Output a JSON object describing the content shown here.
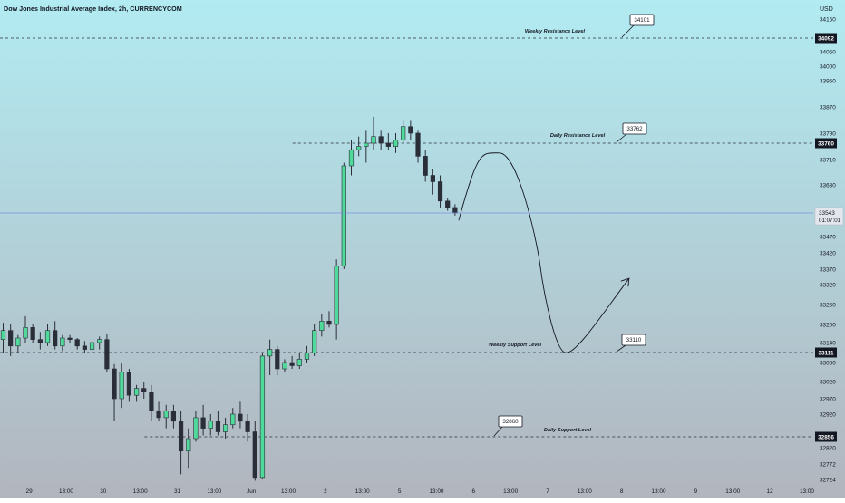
{
  "header": {
    "title": "Dow Jones Industrial Average Index, 2h, CURRENCYCOM"
  },
  "colors": {
    "bg_top": "#b2ebf2",
    "bg_bottom": "#b2b5be",
    "bull": "#4fd99a",
    "bear": "#2a2e39",
    "text": "#131722",
    "tag_dark": "#131722",
    "price_line": "#7e8fe0"
  },
  "chart_data": {
    "type": "candlestick",
    "currency": "USD",
    "ylim": [
      32700,
      34200
    ],
    "y_ticks": [
      {
        "label": "34150",
        "value": 34150
      },
      {
        "label": "34050",
        "value": 34050
      },
      {
        "label": "34000",
        "value": 34000
      },
      {
        "label": "33950",
        "value": 33950
      },
      {
        "label": "33870",
        "value": 33870
      },
      {
        "label": "33790",
        "value": 33790
      },
      {
        "label": "33710",
        "value": 33710
      },
      {
        "label": "33630",
        "value": 33630
      },
      {
        "label": "33470",
        "value": 33470
      },
      {
        "label": "33420",
        "value": 33420
      },
      {
        "label": "33370",
        "value": 33370
      },
      {
        "label": "33320",
        "value": 33320
      },
      {
        "label": "33260",
        "value": 33260
      },
      {
        "label": "33200",
        "value": 33200
      },
      {
        "label": "33140",
        "value": 33140
      },
      {
        "label": "33080",
        "value": 33080
      },
      {
        "label": "33020",
        "value": 33020
      },
      {
        "label": "32970",
        "value": 32970
      },
      {
        "label": "32920",
        "value": 32920
      },
      {
        "label": "32820",
        "value": 32820
      },
      {
        "label": "32772",
        "value": 32772
      },
      {
        "label": "32724",
        "value": 32724
      }
    ],
    "x_ticks": [
      {
        "label": "29",
        "bar": 3.5
      },
      {
        "label": "13:00",
        "bar": 8.5
      },
      {
        "label": "30",
        "bar": 13.5
      },
      {
        "label": "13:00",
        "bar": 18.5
      },
      {
        "label": "31",
        "bar": 23.5
      },
      {
        "label": "13:00",
        "bar": 28.5
      },
      {
        "label": "Jun",
        "bar": 33.5
      },
      {
        "label": "13:00",
        "bar": 38.5
      },
      {
        "label": "2",
        "bar": 43.5
      },
      {
        "label": "13:00",
        "bar": 48.5
      },
      {
        "label": "5",
        "bar": 53.5
      },
      {
        "label": "13:00",
        "bar": 58.5
      },
      {
        "label": "6",
        "bar": 63.5
      },
      {
        "label": "13:00",
        "bar": 68.5
      },
      {
        "label": "7",
        "bar": 73.5
      },
      {
        "label": "13:00",
        "bar": 78.5
      },
      {
        "label": "8",
        "bar": 83.5
      },
      {
        "label": "13:00",
        "bar": 88.5
      },
      {
        "label": "9",
        "bar": 93.5
      },
      {
        "label": "13:00",
        "bar": 98.5
      },
      {
        "label": "12",
        "bar": 103.5
      },
      {
        "label": "13:00",
        "bar": 108.5
      }
    ],
    "last_price": {
      "value": 33543,
      "label": "33543",
      "countdown": "01:07:01"
    },
    "levels": [
      {
        "value": 34092,
        "tag": "34092",
        "name": "Weekly Resistance Level",
        "callout": "34101",
        "start_bar": 0
      },
      {
        "value": 33760,
        "tag": "33760",
        "name": "Daily Resistance Level",
        "callout": "33762",
        "start_bar": 39.5
      },
      {
        "value": 33111,
        "tag": "33111",
        "name": "Weekly Support Level",
        "callout": "33110",
        "start_bar": 0
      },
      {
        "value": 32856,
        "tag": "32856",
        "name": "Daily Support Level",
        "callout": "32860",
        "start_bar": 19.5
      }
    ],
    "projection": [
      {
        "bar": 61.5,
        "value": 33520
      },
      {
        "bar": 67,
        "value": 33730
      },
      {
        "bar": 72.5,
        "value": 33380
      },
      {
        "bar": 76,
        "value": 33110
      },
      {
        "bar": 84.5,
        "value": 33340
      }
    ],
    "candles": [
      {
        "o": 33150,
        "h": 33205,
        "l": 33110,
        "c": 33180
      },
      {
        "o": 33180,
        "h": 33200,
        "l": 33100,
        "c": 33130
      },
      {
        "o": 33130,
        "h": 33165,
        "l": 33110,
        "c": 33155
      },
      {
        "o": 33155,
        "h": 33225,
        "l": 33140,
        "c": 33190
      },
      {
        "o": 33190,
        "h": 33200,
        "l": 33140,
        "c": 33150
      },
      {
        "o": 33150,
        "h": 33175,
        "l": 33120,
        "c": 33140
      },
      {
        "o": 33140,
        "h": 33200,
        "l": 33130,
        "c": 33180
      },
      {
        "o": 33180,
        "h": 33210,
        "l": 33120,
        "c": 33130
      },
      {
        "o": 33130,
        "h": 33165,
        "l": 33115,
        "c": 33155
      },
      {
        "o": 33155,
        "h": 33165,
        "l": 33140,
        "c": 33150
      },
      {
        "o": 33150,
        "h": 33155,
        "l": 33120,
        "c": 33130
      },
      {
        "o": 33130,
        "h": 33145,
        "l": 33110,
        "c": 33120
      },
      {
        "o": 33120,
        "h": 33150,
        "l": 33110,
        "c": 33140
      },
      {
        "o": 33140,
        "h": 33160,
        "l": 33120,
        "c": 33150
      },
      {
        "o": 33150,
        "h": 33170,
        "l": 33050,
        "c": 33060
      },
      {
        "o": 33060,
        "h": 33075,
        "l": 32900,
        "c": 32970
      },
      {
        "o": 32970,
        "h": 33080,
        "l": 32940,
        "c": 33050
      },
      {
        "o": 33050,
        "h": 33060,
        "l": 32960,
        "c": 32980
      },
      {
        "o": 32980,
        "h": 33010,
        "l": 32960,
        "c": 33000
      },
      {
        "o": 33000,
        "h": 33020,
        "l": 32970,
        "c": 32990
      },
      {
        "o": 32990,
        "h": 33010,
        "l": 32900,
        "c": 32930
      },
      {
        "o": 32930,
        "h": 32960,
        "l": 32900,
        "c": 32910
      },
      {
        "o": 32910,
        "h": 32950,
        "l": 32880,
        "c": 32930
      },
      {
        "o": 32930,
        "h": 32950,
        "l": 32880,
        "c": 32900
      },
      {
        "o": 32900,
        "h": 32930,
        "l": 32740,
        "c": 32810
      },
      {
        "o": 32810,
        "h": 32880,
        "l": 32760,
        "c": 32850
      },
      {
        "o": 32850,
        "h": 32930,
        "l": 32840,
        "c": 32910
      },
      {
        "o": 32910,
        "h": 32950,
        "l": 32860,
        "c": 32880
      },
      {
        "o": 32880,
        "h": 32920,
        "l": 32860,
        "c": 32900
      },
      {
        "o": 32900,
        "h": 32930,
        "l": 32860,
        "c": 32870
      },
      {
        "o": 32870,
        "h": 32910,
        "l": 32850,
        "c": 32890
      },
      {
        "o": 32890,
        "h": 32940,
        "l": 32880,
        "c": 32920
      },
      {
        "o": 32920,
        "h": 32960,
        "l": 32880,
        "c": 32900
      },
      {
        "o": 32900,
        "h": 32920,
        "l": 32840,
        "c": 32870
      },
      {
        "o": 32870,
        "h": 32900,
        "l": 32720,
        "c": 32730
      },
      {
        "o": 32730,
        "h": 33110,
        "l": 32725,
        "c": 33100
      },
      {
        "o": 33100,
        "h": 33150,
        "l": 33040,
        "c": 33120
      },
      {
        "o": 33120,
        "h": 33130,
        "l": 33040,
        "c": 33060
      },
      {
        "o": 33060,
        "h": 33090,
        "l": 33050,
        "c": 33080
      },
      {
        "o": 33080,
        "h": 33100,
        "l": 33060,
        "c": 33070
      },
      {
        "o": 33070,
        "h": 33110,
        "l": 33060,
        "c": 33090
      },
      {
        "o": 33090,
        "h": 33130,
        "l": 33080,
        "c": 33110
      },
      {
        "o": 33110,
        "h": 33200,
        "l": 33100,
        "c": 33180
      },
      {
        "o": 33180,
        "h": 33230,
        "l": 33160,
        "c": 33210
      },
      {
        "o": 33210,
        "h": 33240,
        "l": 33190,
        "c": 33200
      },
      {
        "o": 33200,
        "h": 33400,
        "l": 33150,
        "c": 33380
      },
      {
        "o": 33380,
        "h": 33700,
        "l": 33370,
        "c": 33690
      },
      {
        "o": 33690,
        "h": 33770,
        "l": 33660,
        "c": 33740
      },
      {
        "o": 33740,
        "h": 33780,
        "l": 33720,
        "c": 33750
      },
      {
        "o": 33750,
        "h": 33800,
        "l": 33700,
        "c": 33760
      },
      {
        "o": 33760,
        "h": 33840,
        "l": 33740,
        "c": 33780
      },
      {
        "o": 33780,
        "h": 33800,
        "l": 33740,
        "c": 33760
      },
      {
        "o": 33760,
        "h": 33790,
        "l": 33740,
        "c": 33750
      },
      {
        "o": 33750,
        "h": 33790,
        "l": 33730,
        "c": 33770
      },
      {
        "o": 33770,
        "h": 33830,
        "l": 33760,
        "c": 33810
      },
      {
        "o": 33810,
        "h": 33830,
        "l": 33770,
        "c": 33790
      },
      {
        "o": 33790,
        "h": 33800,
        "l": 33700,
        "c": 33720
      },
      {
        "o": 33720,
        "h": 33740,
        "l": 33640,
        "c": 33660
      },
      {
        "o": 33660,
        "h": 33680,
        "l": 33600,
        "c": 33640
      },
      {
        "o": 33640,
        "h": 33660,
        "l": 33560,
        "c": 33580
      },
      {
        "o": 33580,
        "h": 33590,
        "l": 33550,
        "c": 33560
      },
      {
        "o": 33560,
        "h": 33570,
        "l": 33535,
        "c": 33543
      }
    ]
  }
}
